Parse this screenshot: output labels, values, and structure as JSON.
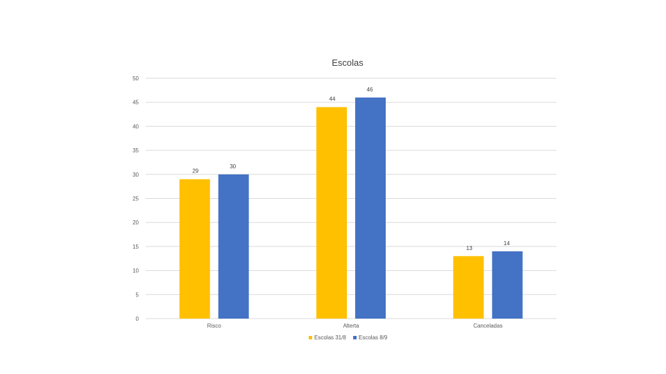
{
  "chart_data": {
    "type": "bar",
    "title": "Escolas",
    "categories": [
      "Risco",
      "Alterta",
      "Canceladas"
    ],
    "series": [
      {
        "name": "Escolas 31/8",
        "values": [
          29,
          44,
          13
        ],
        "color": "#FFC000"
      },
      {
        "name": "Escolas 8/9",
        "values": [
          30,
          46,
          14
        ],
        "color": "#4472C4"
      }
    ],
    "ylim": [
      0,
      50
    ],
    "yticks": [
      0,
      5,
      10,
      15,
      20,
      25,
      30,
      35,
      40,
      45,
      50
    ],
    "grid": true,
    "legend_position": "bottom",
    "data_labels": true
  }
}
